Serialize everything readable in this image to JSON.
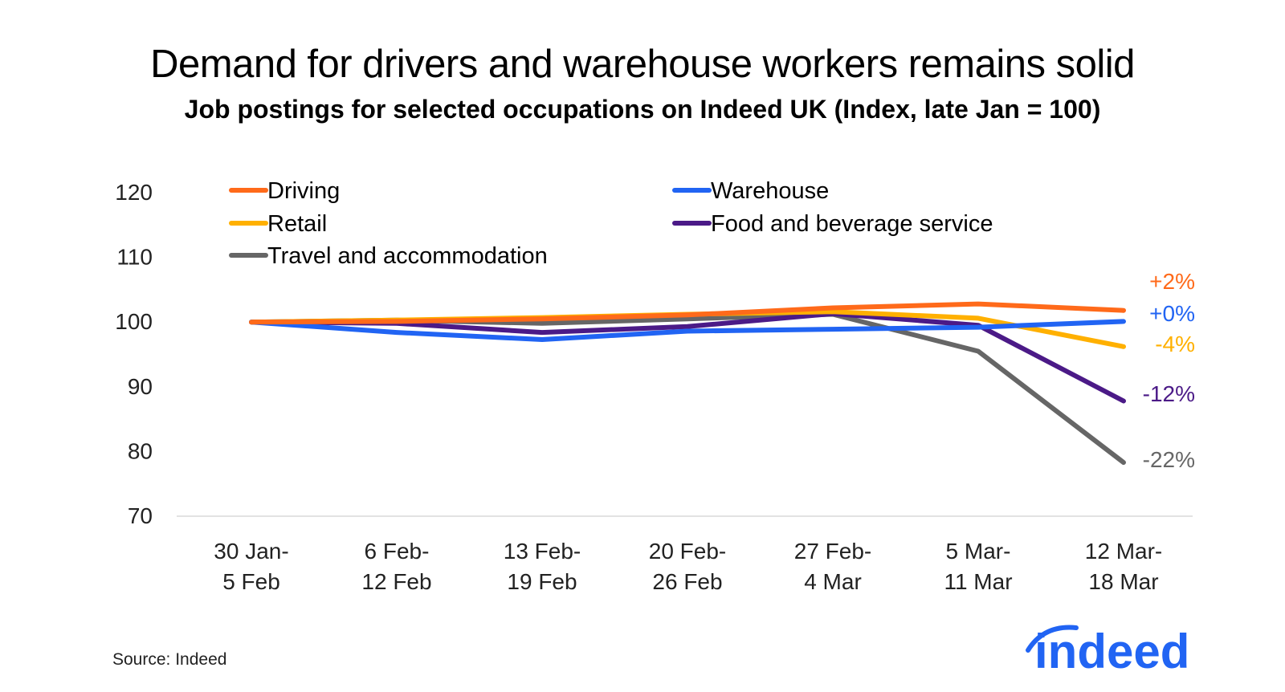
{
  "title": "Demand for drivers and warehouse workers remains solid",
  "subtitle": "Job postings for selected occupations on Indeed UK (Index, late Jan = 100)",
  "source": "Source: Indeed",
  "logo_text": "indeed",
  "chart_data": {
    "type": "line",
    "title": "Demand for drivers and warehouse workers remains solid",
    "subtitle": "Job postings for selected occupations on Indeed UK (Index, late Jan = 100)",
    "categories": [
      [
        "30 Jan-",
        "5 Feb"
      ],
      [
        "6 Feb-",
        "12 Feb"
      ],
      [
        "13 Feb-",
        "19 Feb"
      ],
      [
        "20 Feb-",
        "26 Feb"
      ],
      [
        "27 Feb-",
        "4 Mar"
      ],
      [
        "5 Mar-",
        "11 Mar"
      ],
      [
        "12 Mar-",
        "18 Mar"
      ]
    ],
    "ylim": [
      70,
      120
    ],
    "yticks": [
      70,
      80,
      90,
      100,
      110,
      120
    ],
    "grid": "baseline only",
    "legend_position": "top",
    "series": [
      {
        "name": "Driving",
        "color": "#ff6a1a",
        "values": [
          100,
          100.1,
          100.5,
          101.1,
          102.2,
          102.8,
          101.8
        ],
        "end_label": "+2%"
      },
      {
        "name": "Warehouse",
        "color": "#2164f3",
        "values": [
          100,
          98.4,
          97.3,
          98.6,
          98.9,
          99.2,
          100.1
        ],
        "end_label": "+0%"
      },
      {
        "name": "Retail",
        "color": "#ffb000",
        "values": [
          100,
          100.3,
          100.7,
          101.2,
          101.6,
          100.6,
          96.2
        ],
        "end_label": "-4%"
      },
      {
        "name": "Food and beverage service",
        "color": "#4b1a87",
        "values": [
          100,
          99.8,
          98.4,
          99.3,
          101.3,
          99.5,
          87.8
        ],
        "end_label": "-12%"
      },
      {
        "name": "Travel and accommodation",
        "color": "#666666",
        "values": [
          100,
          100.3,
          99.8,
          100.5,
          101.2,
          95.5,
          78.3
        ],
        "end_label": "-22%"
      }
    ]
  }
}
